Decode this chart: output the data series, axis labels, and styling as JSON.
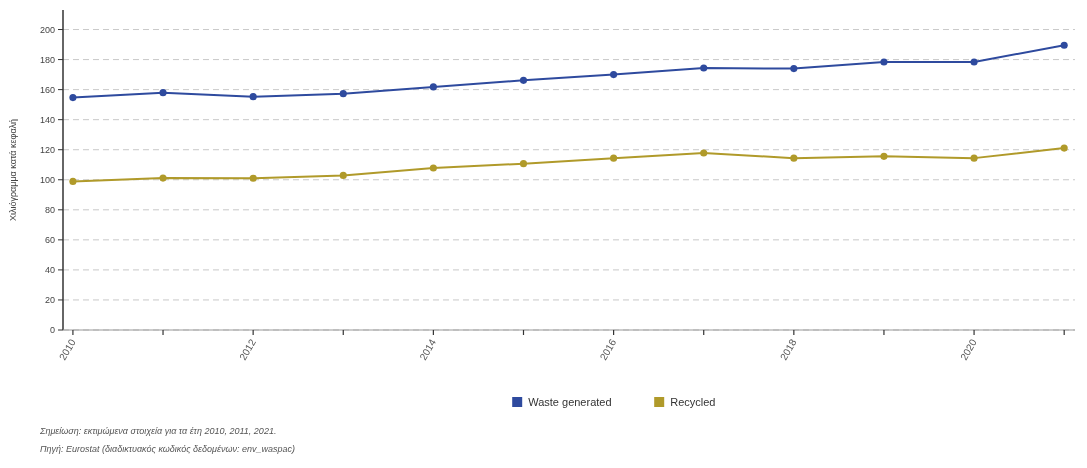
{
  "chart_data": {
    "type": "line",
    "ylabel": "Χιλιόγραμμα κατά κεφαλή",
    "x": [
      2010,
      2011,
      2012,
      2013,
      2014,
      2015,
      2016,
      2017,
      2018,
      2019,
      2020,
      2021
    ],
    "series": [
      {
        "name": "Waste generated",
        "color": "#2e4a9e",
        "values": [
          154.7,
          158,
          155.3,
          157.3,
          161.8,
          166.2,
          170,
          174.4,
          174,
          178.4,
          178.4,
          189.5
        ]
      },
      {
        "name": "Recycled",
        "color": "#b09a2a",
        "values": [
          98.9,
          101.1,
          101,
          102.9,
          107.8,
          110.7,
          114.4,
          117.8,
          114.4,
          115.6,
          114.4,
          121.1
        ]
      }
    ],
    "xlim": [
      2009.89,
      2021.12
    ],
    "xticks": [
      2010,
      {
        "value": 2011,
        "label": null
      },
      2012,
      {
        "value": 2013,
        "label": null
      },
      2014,
      {
        "value": 2015,
        "label": null
      },
      2016,
      {
        "value": 2017,
        "label": null
      },
      2018,
      {
        "value": 2019,
        "label": null
      },
      2020,
      {
        "value": 2021,
        "label": null
      }
    ],
    "ylim": [
      0,
      213
    ],
    "yticks": [
      0,
      20,
      40,
      60,
      80,
      100,
      120,
      140,
      160,
      180,
      200
    ],
    "grid": "y",
    "legend": "bottom",
    "marker": "circle",
    "line_style": "solid",
    "annotations": [
      "Σημείωση: εκτιμώμενα στοιχεία για τα έτη 2010, 2011, 2021.",
      "Πηγή: Eurostat (διαδικτυακός κωδικός δεδομένων: env_waspac)"
    ]
  }
}
